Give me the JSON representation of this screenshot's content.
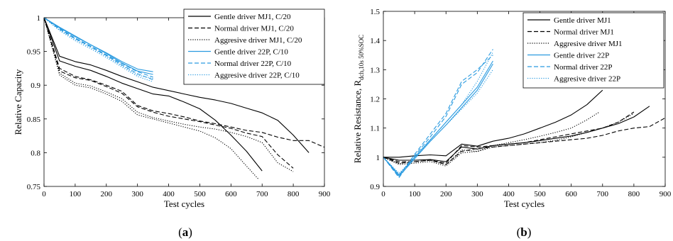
{
  "colors": {
    "mj1": "#000000",
    "p22": "#2b9be0"
  },
  "chart_data": [
    {
      "type": "line",
      "caption": {
        "open": "(",
        "letter": "a",
        "close": ")"
      },
      "xlabel": "Test cycles",
      "ylabel": "Relative Capacity",
      "xlim": [
        0,
        900
      ],
      "ylim": [
        0.75,
        1.0
      ],
      "xticks": [
        0,
        100,
        200,
        300,
        400,
        500,
        600,
        700,
        800,
        900
      ],
      "yticks": [
        0.75,
        0.8,
        0.85,
        0.9,
        0.95,
        1.0
      ],
      "ytick_labels": [
        "0.75",
        "0.8",
        "0.85",
        "0.9",
        "0.95",
        "1"
      ],
      "grid": false,
      "legend_position": "top-right",
      "series": [
        {
          "name": "Gentle driver MJ1, C/20",
          "color": "mj1",
          "style": "solid",
          "x": [
            0,
            50,
            100,
            150,
            200,
            250,
            300,
            350,
            400,
            450,
            500,
            550,
            600,
            650,
            700,
            750,
            800,
            850
          ],
          "y": [
            1.0,
            0.943,
            0.935,
            0.93,
            0.922,
            0.913,
            0.905,
            0.897,
            0.892,
            0.887,
            0.882,
            0.878,
            0.873,
            0.866,
            0.859,
            0.848,
            0.826,
            0.8
          ]
        },
        {
          "name": "Gentle driver MJ1, C/20",
          "color": "mj1",
          "style": "solid",
          "x": [
            0,
            50,
            100,
            150,
            200,
            250,
            300,
            350,
            400,
            450,
            500,
            550,
            600,
            650,
            700
          ],
          "y": [
            1.0,
            0.936,
            0.928,
            0.922,
            0.913,
            0.903,
            0.895,
            0.887,
            0.884,
            0.875,
            0.865,
            0.848,
            0.826,
            0.802,
            0.773
          ]
        },
        {
          "name": "Normal driver MJ1, C/20",
          "color": "mj1",
          "style": "dashed",
          "x": [
            0,
            50,
            100,
            150,
            200,
            250,
            300,
            350,
            400,
            450,
            500,
            550,
            600,
            650,
            700,
            750,
            800,
            850,
            900
          ],
          "y": [
            1.0,
            0.925,
            0.913,
            0.908,
            0.9,
            0.891,
            0.87,
            0.862,
            0.858,
            0.853,
            0.847,
            0.843,
            0.838,
            0.833,
            0.83,
            0.823,
            0.818,
            0.818,
            0.808
          ]
        },
        {
          "name": "Normal driver MJ1, C/20",
          "color": "mj1",
          "style": "dashed",
          "x": [
            0,
            50,
            100,
            150,
            200,
            250,
            300,
            350,
            400,
            450,
            500,
            550,
            600,
            650,
            700,
            750,
            800
          ],
          "y": [
            1.0,
            0.921,
            0.911,
            0.907,
            0.898,
            0.888,
            0.868,
            0.86,
            0.854,
            0.85,
            0.846,
            0.841,
            0.836,
            0.829,
            0.824,
            0.797,
            0.777
          ]
        },
        {
          "name": "Aggresive driver MJ1, C/20",
          "color": "mj1",
          "style": "dotted",
          "x": [
            0,
            50,
            100,
            150,
            200,
            250,
            300,
            350,
            400,
            450,
            500,
            550,
            600,
            650,
            700,
            750,
            800
          ],
          "y": [
            1.0,
            0.918,
            0.903,
            0.899,
            0.89,
            0.88,
            0.86,
            0.852,
            0.847,
            0.842,
            0.838,
            0.835,
            0.83,
            0.824,
            0.815,
            0.785,
            0.772
          ]
        },
        {
          "name": "Aggresive driver MJ1, C/20",
          "color": "mj1",
          "style": "dotted",
          "x": [
            0,
            50,
            100,
            150,
            200,
            250,
            300,
            350,
            400,
            450,
            500,
            550,
            600,
            650,
            690
          ],
          "y": [
            1.0,
            0.915,
            0.9,
            0.896,
            0.887,
            0.876,
            0.856,
            0.85,
            0.844,
            0.838,
            0.832,
            0.822,
            0.806,
            0.78,
            0.76
          ]
        },
        {
          "name": "Gentle driver 22P, C/10",
          "color": "p22",
          "style": "solid",
          "x": [
            0,
            50,
            100,
            150,
            200,
            250,
            300,
            350
          ],
          "y": [
            1.0,
            0.986,
            0.973,
            0.96,
            0.948,
            0.935,
            0.924,
            0.92
          ]
        },
        {
          "name": "Gentle driver 22P, C/10",
          "color": "p22",
          "style": "solid",
          "x": [
            0,
            50,
            100,
            150,
            200,
            250,
            300,
            350
          ],
          "y": [
            1.0,
            0.985,
            0.972,
            0.96,
            0.947,
            0.933,
            0.921,
            0.916
          ]
        },
        {
          "name": "Normal driver 22P, C/10",
          "color": "p22",
          "style": "dashed",
          "x": [
            0,
            50,
            100,
            150,
            200,
            250,
            300,
            350
          ],
          "y": [
            1.0,
            0.984,
            0.97,
            0.958,
            0.945,
            0.932,
            0.92,
            0.912
          ]
        },
        {
          "name": "Normal driver 22P, C/10",
          "color": "p22",
          "style": "dashed",
          "x": [
            0,
            50,
            100,
            150,
            200,
            250,
            300,
            350
          ],
          "y": [
            1.0,
            0.983,
            0.969,
            0.957,
            0.944,
            0.93,
            0.917,
            0.908
          ]
        },
        {
          "name": "Aggresive driver 22P, C/10",
          "color": "p22",
          "style": "dotted",
          "x": [
            0,
            50,
            100,
            150,
            200,
            250,
            300,
            350
          ],
          "y": [
            1.0,
            0.982,
            0.968,
            0.956,
            0.943,
            0.929,
            0.915,
            0.91
          ]
        },
        {
          "name": "Aggresive driver 22P, C/10",
          "color": "p22",
          "style": "dotted",
          "x": [
            0,
            50,
            100,
            150,
            200,
            250,
            300,
            350
          ],
          "y": [
            1.0,
            0.981,
            0.966,
            0.954,
            0.941,
            0.927,
            0.913,
            0.905
          ]
        }
      ],
      "legend": [
        {
          "label": "Gentle driver MJ1, C/20",
          "color": "mj1",
          "style": "solid"
        },
        {
          "label": "Normal driver MJ1, C/20",
          "color": "mj1",
          "style": "dashed"
        },
        {
          "label": "Aggresive driver MJ1, C/20",
          "color": "mj1",
          "style": "dotted"
        },
        {
          "label": "Gentle driver 22P, C/10",
          "color": "p22",
          "style": "solid"
        },
        {
          "label": "Normal driver 22P, C/10",
          "color": "p22",
          "style": "dashed"
        },
        {
          "label": "Aggresive driver 22P, C/10",
          "color": "p22",
          "style": "dotted"
        }
      ]
    },
    {
      "type": "line",
      "caption": {
        "open": "(",
        "letter": "b",
        "close": ")"
      },
      "xlabel": "Test cycles",
      "ylabel": "Relative Resistance, R",
      "ylabel_sub": "dch,10s 50%SOC",
      "xlim": [
        0,
        900
      ],
      "ylim": [
        0.9,
        1.5
      ],
      "xticks": [
        0,
        100,
        200,
        300,
        400,
        500,
        600,
        700,
        800,
        900
      ],
      "yticks": [
        0.9,
        1.0,
        1.1,
        1.2,
        1.3,
        1.4,
        1.5
      ],
      "ytick_labels": [
        "0.9",
        "1",
        "1.1",
        "1.2",
        "1.3",
        "1.4",
        "1.5"
      ],
      "grid": false,
      "legend_position": "top-right",
      "series": [
        {
          "name": "Gentle driver MJ1",
          "color": "mj1",
          "style": "solid",
          "x": [
            0,
            50,
            100,
            150,
            200,
            250,
            300,
            350,
            400,
            450,
            500,
            550,
            600,
            650,
            700,
            750,
            800,
            850
          ],
          "y": [
            1.0,
            0.99,
            0.99,
            0.992,
            0.985,
            1.035,
            1.028,
            1.04,
            1.045,
            1.05,
            1.057,
            1.065,
            1.073,
            1.085,
            1.1,
            1.115,
            1.138,
            1.175
          ]
        },
        {
          "name": "Gentle driver MJ1",
          "color": "mj1",
          "style": "solid",
          "x": [
            0,
            50,
            100,
            150,
            200,
            250,
            300,
            350,
            400,
            450,
            500,
            550,
            600,
            650,
            700
          ],
          "y": [
            1.0,
            1.0,
            1.005,
            1.008,
            1.005,
            1.045,
            1.038,
            1.055,
            1.065,
            1.08,
            1.1,
            1.12,
            1.145,
            1.18,
            1.23
          ]
        },
        {
          "name": "Normal driver MJ1",
          "color": "mj1",
          "style": "dashed",
          "x": [
            0,
            50,
            100,
            150,
            200,
            250,
            300,
            350,
            400,
            450,
            500,
            550,
            600,
            650,
            700,
            750,
            800,
            850,
            900
          ],
          "y": [
            1.0,
            0.98,
            0.985,
            0.99,
            0.975,
            1.02,
            1.03,
            1.035,
            1.04,
            1.045,
            1.05,
            1.055,
            1.06,
            1.065,
            1.075,
            1.09,
            1.1,
            1.105,
            1.135
          ]
        },
        {
          "name": "Normal driver MJ1",
          "color": "mj1",
          "style": "dashed",
          "x": [
            0,
            50,
            100,
            150,
            200,
            250,
            300,
            350,
            400,
            450,
            500,
            550,
            600,
            650,
            700,
            750,
            800
          ],
          "y": [
            1.0,
            0.985,
            0.985,
            0.99,
            0.98,
            1.04,
            1.035,
            1.04,
            1.045,
            1.05,
            1.06,
            1.07,
            1.08,
            1.09,
            1.1,
            1.12,
            1.155
          ]
        },
        {
          "name": "Aggresive driver MJ1",
          "color": "mj1",
          "style": "dotted",
          "x": [
            0,
            50,
            100,
            150,
            200,
            250,
            300,
            350,
            400,
            450,
            500,
            550,
            600,
            650,
            700,
            750,
            800
          ],
          "y": [
            1.0,
            0.975,
            0.98,
            0.985,
            0.97,
            1.015,
            1.02,
            1.035,
            1.04,
            1.045,
            1.05,
            1.058,
            1.07,
            1.085,
            1.1,
            1.12,
            1.15
          ]
        },
        {
          "name": "Aggresive driver MJ1",
          "color": "mj1",
          "style": "dotted",
          "x": [
            0,
            50,
            100,
            150,
            200,
            250,
            300,
            350,
            400,
            450,
            500,
            550,
            600,
            650,
            690
          ],
          "y": [
            1.0,
            0.978,
            0.985,
            0.99,
            0.975,
            1.025,
            1.02,
            1.04,
            1.05,
            1.06,
            1.072,
            1.085,
            1.1,
            1.128,
            1.155
          ]
        },
        {
          "name": "Gentle driver 22P",
          "color": "p22",
          "style": "solid",
          "x": [
            0,
            50,
            100,
            150,
            200,
            250,
            300,
            350
          ],
          "y": [
            1.0,
            0.94,
            1.0,
            1.06,
            1.12,
            1.18,
            1.24,
            1.33
          ]
        },
        {
          "name": "Gentle driver 22P",
          "color": "p22",
          "style": "solid",
          "x": [
            0,
            50,
            100,
            150,
            200,
            250,
            300,
            350
          ],
          "y": [
            1.0,
            0.935,
            0.995,
            1.055,
            1.11,
            1.17,
            1.23,
            1.32
          ]
        },
        {
          "name": "Normal driver 22P",
          "color": "p22",
          "style": "dashed",
          "x": [
            0,
            50,
            100,
            150,
            200,
            250,
            300,
            350
          ],
          "y": [
            1.0,
            0.935,
            1.01,
            1.08,
            1.15,
            1.26,
            1.3,
            1.35
          ]
        },
        {
          "name": "Normal driver 22P",
          "color": "p22",
          "style": "dashed",
          "x": [
            0,
            50,
            100,
            150,
            200,
            250,
            300,
            350
          ],
          "y": [
            1.0,
            0.93,
            1.005,
            1.07,
            1.14,
            1.25,
            1.29,
            1.37
          ]
        },
        {
          "name": "Aggresive driver 22P",
          "color": "p22",
          "style": "dotted",
          "x": [
            0,
            50,
            100,
            150,
            200,
            250,
            300,
            350
          ],
          "y": [
            1.0,
            0.94,
            1.0,
            1.06,
            1.12,
            1.18,
            1.26,
            1.36
          ]
        },
        {
          "name": "Aggresive driver 22P",
          "color": "p22",
          "style": "dotted",
          "x": [
            0,
            50,
            100,
            150,
            200,
            250,
            300,
            350
          ],
          "y": [
            1.0,
            0.945,
            1.0,
            1.055,
            1.11,
            1.165,
            1.22,
            1.3
          ]
        }
      ],
      "legend": [
        {
          "label": "Gentle driver MJ1",
          "color": "mj1",
          "style": "solid"
        },
        {
          "label": "Normal driver MJ1",
          "color": "mj1",
          "style": "dashed"
        },
        {
          "label": "Aggresive driver MJ1",
          "color": "mj1",
          "style": "dotted"
        },
        {
          "label": "Gentle driver 22P",
          "color": "p22",
          "style": "solid"
        },
        {
          "label": "Normal driver 22P",
          "color": "p22",
          "style": "dashed"
        },
        {
          "label": "Aggresive driver 22P",
          "color": "p22",
          "style": "dotted"
        }
      ]
    }
  ]
}
